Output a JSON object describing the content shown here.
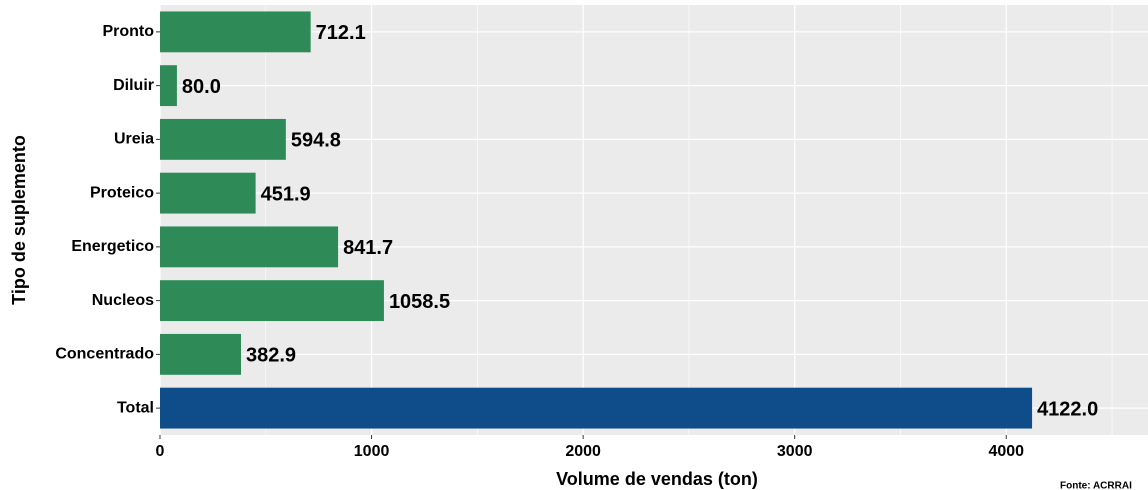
{
  "chart_data": {
    "type": "barh",
    "categories": [
      "Pronto",
      "Diluir",
      "Ureia",
      "Proteico",
      "Energetico",
      "Nucleos",
      "Concentrado",
      "Total"
    ],
    "values": [
      712.1,
      80.0,
      594.8,
      451.9,
      841.7,
      1058.5,
      382.9,
      4122.0
    ],
    "value_labels": [
      "712.1",
      "80.0",
      "594.8",
      "451.9",
      "841.7",
      "1058.5",
      "382.9",
      "4122.0"
    ],
    "colors": [
      "#2e8b57",
      "#2e8b57",
      "#2e8b57",
      "#2e8b57",
      "#2e8b57",
      "#2e8b57",
      "#2e8b57",
      "#0f4c8a"
    ],
    "xlim": [
      0,
      4670
    ],
    "xticks": [
      0,
      1000,
      2000,
      3000,
      4000
    ],
    "xminor": [
      500,
      1500,
      2500,
      3500,
      4500
    ],
    "grid": true,
    "xlabel": "Volume de vendas (ton)",
    "ylabel": "Tipo de suplemento",
    "caption": "Fonte: ACRRAI"
  }
}
